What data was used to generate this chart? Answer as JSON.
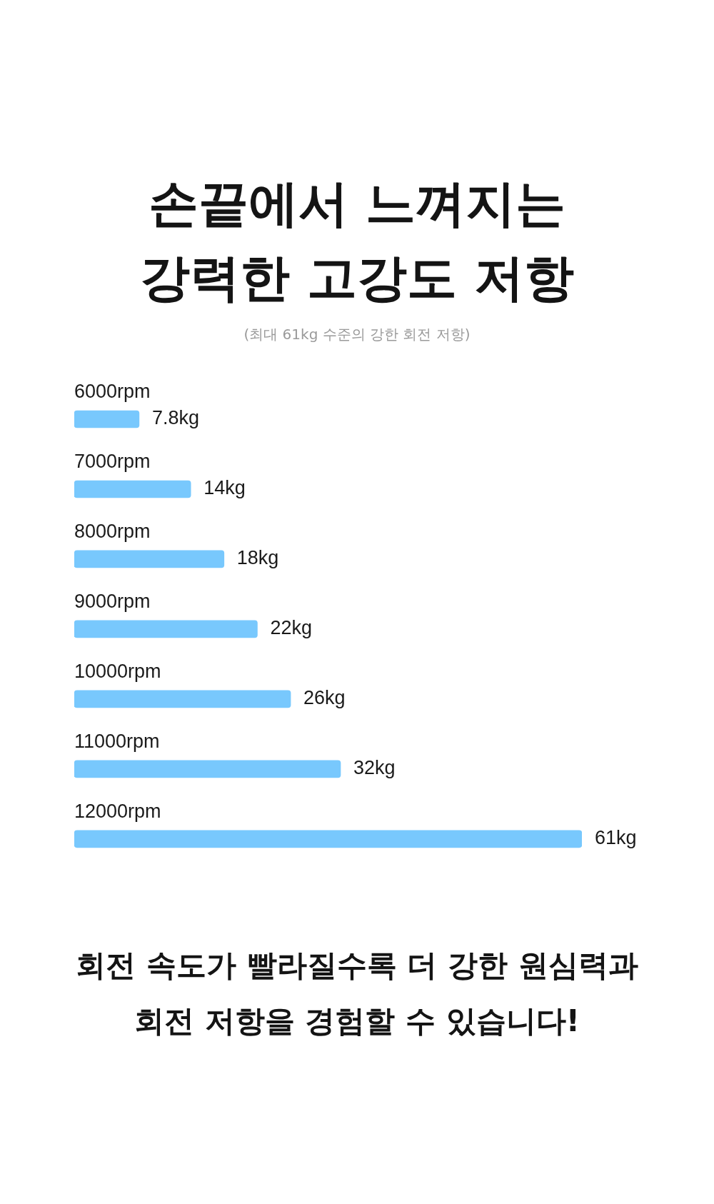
{
  "chart_data": {
    "type": "bar",
    "title": "손끝에서 느껴지는 강력한 고강도 저항",
    "subtitle": "(최대 61kg 수준의 강한 회전 저항)",
    "orientation": "horizontal",
    "categories": [
      "6000rpm",
      "7000rpm",
      "8000rpm",
      "9000rpm",
      "10000rpm",
      "11000rpm",
      "12000rpm"
    ],
    "values": [
      7.8,
      14,
      18,
      22,
      26,
      32,
      61
    ],
    "value_labels": [
      "7.8kg",
      "14kg",
      "18kg",
      "22kg",
      "26kg",
      "32kg",
      "61kg"
    ],
    "color": "#78c8fd",
    "tick_labels": "y",
    "annotations": [
      "회전 속도가 빨라질수록 더 강한 원심력과 회전 저항을 경험할 수 있습니다!"
    ]
  }
}
